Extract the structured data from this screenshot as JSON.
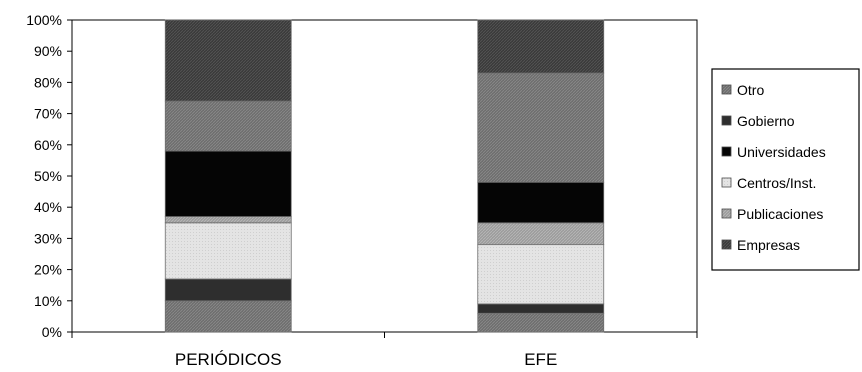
{
  "chart_data": {
    "type": "bar",
    "stacked": true,
    "normalized": true,
    "title": "",
    "xlabel": "",
    "ylabel": "",
    "ylim": [
      0,
      100
    ],
    "yticks": [
      "0%",
      "10%",
      "20%",
      "30%",
      "40%",
      "50%",
      "60%",
      "70%",
      "80%",
      "90%",
      "100%"
    ],
    "categories": [
      "PERIÓDICOS",
      "EFE"
    ],
    "grid": false,
    "legend_position": "right",
    "series": [
      {
        "name": "Empresas",
        "values": [
          10,
          6
        ],
        "color": "#6e6e6e",
        "pattern": "hatch"
      },
      {
        "name": "Publicaciones",
        "values": [
          0,
          0
        ],
        "color": "#9c9c9c",
        "pattern": "none"
      },
      {
        "name": "Centros/Inst.",
        "values": [
          7,
          3
        ],
        "color": "#2e2e2e",
        "pattern": "none"
      },
      {
        "name": "Universidades",
        "values": [
          18,
          19
        ],
        "color": "#e4e4e4",
        "pattern": "dots"
      },
      {
        "name": "Gobierno",
        "values": [
          2,
          7
        ],
        "color": "#9c9c9c",
        "pattern": "hatch"
      },
      {
        "name": "Otro",
        "values": [
          21,
          13
        ],
        "color": "#050505",
        "pattern": "none"
      },
      {
        "name": "Otro",
        "values": [
          16,
          35
        ],
        "color": "#6e6e6e",
        "pattern": "hatch"
      },
      {
        "name": "Empresas",
        "values": [
          26,
          17
        ],
        "color": "#3a3a3a",
        "pattern": "hatch"
      }
    ],
    "legend": [
      {
        "label": "Otro",
        "color": "#6e6e6e",
        "pattern": "hatch"
      },
      {
        "label": "Gobierno",
        "color": "#2e2e2e",
        "pattern": "none"
      },
      {
        "label": "Universidades",
        "color": "#050505",
        "pattern": "none"
      },
      {
        "label": "Centros/Inst.",
        "color": "#e4e4e4",
        "pattern": "dots"
      },
      {
        "label": "Publicaciones",
        "color": "#9c9c9c",
        "pattern": "hatch"
      },
      {
        "label": "Empresas",
        "color": "#3a3a3a",
        "pattern": "hatch"
      }
    ]
  }
}
